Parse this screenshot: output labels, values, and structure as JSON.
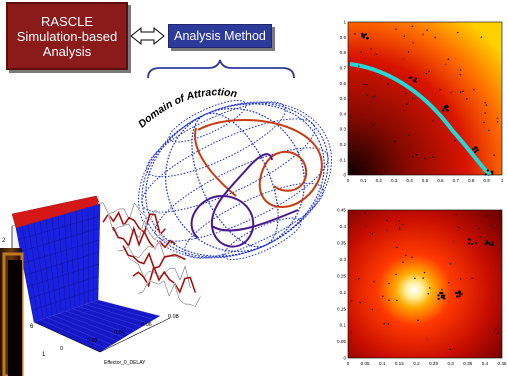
{
  "rascle_box": {
    "line1": "RASCLE",
    "line2": "Simulation-based",
    "line3": "Analysis"
  },
  "method_box": {
    "label": "Analysis Method"
  },
  "domain_label": "Domain of Attraction",
  "surface_plot": {
    "x_axis_label": "Effector_0_DELAY",
    "x_ticks": [
      "0",
      "0.02",
      "0.04",
      "0.06",
      "0.08"
    ],
    "y_ticks": [
      "1",
      "6"
    ],
    "z_ticks": [
      "2"
    ]
  },
  "heatmap_top": {
    "x_ticks": [
      "0",
      "0.1",
      "0.2",
      "0.3",
      "0.4",
      "0.5",
      "0.6",
      "0.7",
      "0.8",
      "0.9",
      "1"
    ],
    "y_ticks": [
      "0",
      "0.1",
      "0.2",
      "0.3",
      "0.4",
      "0.5",
      "0.6",
      "0.7",
      "0.8",
      "0.9",
      "1"
    ]
  },
  "heatmap_bottom": {
    "x_ticks": [
      "0",
      "0.05",
      "0.1",
      "0.15",
      "0.2",
      "0.25",
      "0.3",
      "0.35",
      "0.4",
      "0.45"
    ],
    "y_ticks": [
      "0",
      "0.05",
      "0.1",
      "0.15",
      "0.2",
      "0.25",
      "0.3",
      "0.35",
      "0.4",
      "0.45"
    ]
  },
  "colors": {
    "rascle_fill": "#8b1a1a",
    "method_fill": "#2e3a9a",
    "boundary_line": "#22d8d8",
    "sphere_grid": "#1a2fd6",
    "trajectory_red": "#c83a10",
    "trajectory_purple": "#4a1a8a"
  }
}
